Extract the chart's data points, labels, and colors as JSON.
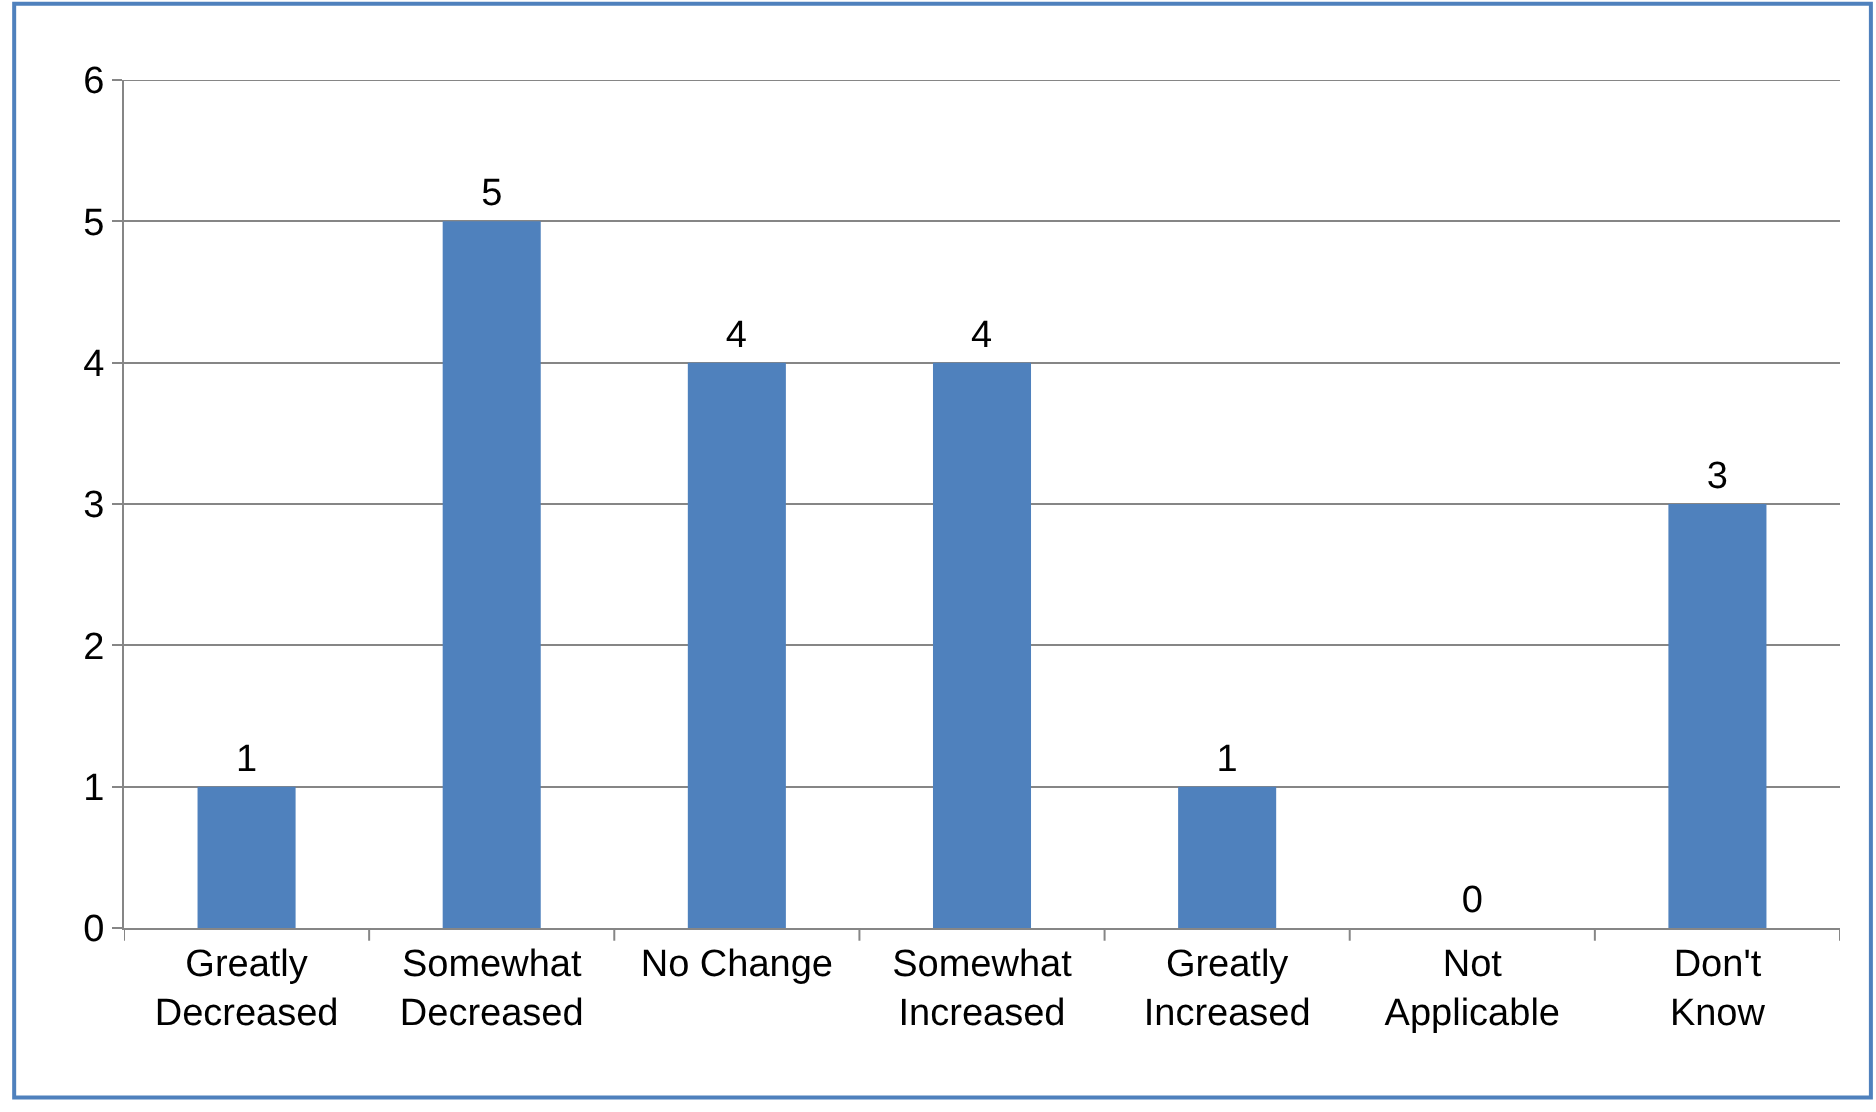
{
  "chart_data": {
    "type": "bar",
    "categories": [
      "Greatly\nDecreased",
      "Somewhat\nDecreased",
      "No Change",
      "Somewhat\nIncreased",
      "Greatly\nIncreased",
      "Not\nApplicable",
      "Don't\nKnow"
    ],
    "values": [
      1,
      5,
      4,
      4,
      1,
      0,
      3
    ],
    "color": "#4f81bd",
    "ylim": [
      0,
      6
    ],
    "yticks": [
      0,
      1,
      2,
      3,
      4,
      5,
      6
    ],
    "grid": "y",
    "data_labels": true
  }
}
